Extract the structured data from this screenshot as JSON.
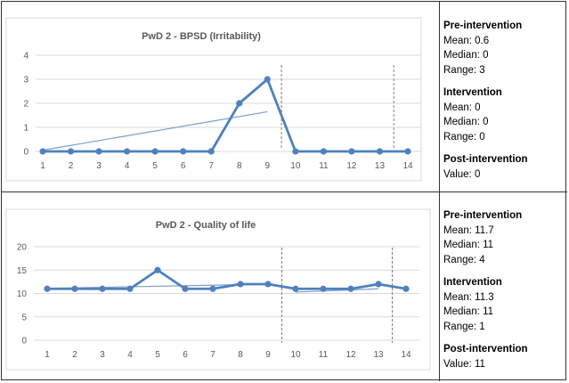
{
  "chart_data": [
    {
      "type": "line",
      "title": "PwD 2 - BPSD (Irritability)",
      "x": [
        1,
        2,
        3,
        4,
        5,
        6,
        7,
        8,
        9,
        10,
        11,
        12,
        13,
        14
      ],
      "values": [
        0,
        0,
        0,
        0,
        0,
        0,
        0,
        2,
        3,
        0,
        0,
        0,
        0,
        0
      ],
      "ylim": [
        0,
        4
      ],
      "yticks": [
        0,
        1,
        2,
        3,
        4
      ],
      "grid": true,
      "phase_lines": [
        9.5,
        13.5
      ],
      "trend_lines": [
        {
          "from": [
            1,
            0.05
          ],
          "to": [
            9,
            1.65
          ]
        }
      ],
      "line_color": "#4f81bd",
      "trend_color": "#7ba0cd"
    },
    {
      "type": "line",
      "title": "PwD 2 - Quality of life",
      "x": [
        1,
        2,
        3,
        4,
        5,
        6,
        7,
        8,
        9,
        10,
        11,
        12,
        13,
        14
      ],
      "values": [
        11,
        11,
        11,
        11,
        15,
        11,
        11,
        12,
        12,
        11,
        11,
        11,
        12,
        11
      ],
      "ylim": [
        0,
        20
      ],
      "yticks": [
        0,
        5,
        10,
        15,
        20
      ],
      "grid": true,
      "phase_lines": [
        9.5,
        13.5
      ],
      "trend_lines": [
        {
          "from": [
            1,
            11.1
          ],
          "to": [
            9,
            12
          ]
        },
        {
          "from": [
            10,
            10.3
          ],
          "to": [
            13,
            11
          ]
        }
      ],
      "line_color": "#4f81bd",
      "trend_color": "#7ba0cd"
    }
  ],
  "stats": [
    {
      "pre": {
        "title": "Pre-intervention",
        "mean": "Mean: 0.6",
        "median": "Median: 0",
        "range": "Range: 3"
      },
      "int": {
        "title": "Intervention",
        "mean": "Mean: 0",
        "median": "Median: 0",
        "range": "Range: 0"
      },
      "post": {
        "title": "Post-intervention",
        "value": "Value: 0"
      }
    },
    {
      "pre": {
        "title": "Pre-intervention",
        "mean": "Mean: 11.7",
        "median": "Median: 11",
        "range": "Range: 4"
      },
      "int": {
        "title": "Intervention",
        "mean": "Mean: 11.3",
        "median": "Median: 11",
        "range": "Range: 1"
      },
      "post": {
        "title": "Post-intervention",
        "value": "Value: 11"
      }
    }
  ]
}
